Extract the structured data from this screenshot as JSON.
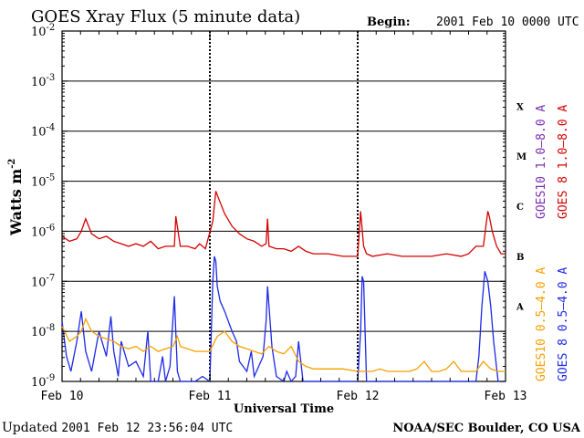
{
  "chart_data": {
    "type": "line",
    "title": "GOES Xray Flux (5 minute data)",
    "begin_label": "Begin:",
    "begin_value": "2001 Feb 10 0000 UTC",
    "xlabel": "Universal Time",
    "ylabel": "Watts m",
    "ylabel_exponent": "-2",
    "xlim": [
      0,
      3
    ],
    "ylim_log10": [
      -9,
      -2
    ],
    "ytick_base": "10",
    "ytick_exponents": [
      "-9",
      "-8",
      "-7",
      "-6",
      "-5",
      "-4",
      "-3",
      "-2"
    ],
    "xtick_labels": [
      "Feb 10",
      "Feb 11",
      "Feb 12",
      "Feb 13"
    ],
    "flare_classes": [
      {
        "label": "A",
        "log10_center": -7.5
      },
      {
        "label": "B",
        "log10_center": -6.5
      },
      {
        "label": "C",
        "log10_center": -5.5
      },
      {
        "label": "M",
        "log10_center": -4.5
      },
      {
        "label": "X",
        "log10_center": -3.5
      }
    ],
    "series": [
      {
        "name": "GOES 8 1.0–8.0 A",
        "color": "#d40000",
        "x": [
          0.0,
          0.05,
          0.1,
          0.13,
          0.16,
          0.2,
          0.25,
          0.3,
          0.35,
          0.4,
          0.45,
          0.5,
          0.55,
          0.6,
          0.65,
          0.7,
          0.76,
          0.77,
          0.8,
          0.85,
          0.9,
          0.93,
          0.97,
          1.02,
          1.04,
          1.06,
          1.1,
          1.15,
          1.2,
          1.25,
          1.3,
          1.35,
          1.38,
          1.39,
          1.4,
          1.45,
          1.5,
          1.55,
          1.6,
          1.65,
          1.7,
          1.8,
          1.9,
          2.0,
          2.02,
          2.04,
          2.06,
          2.1,
          2.2,
          2.3,
          2.4,
          2.5,
          2.6,
          2.7,
          2.75,
          2.8,
          2.85,
          2.88,
          2.89,
          2.91,
          2.94,
          2.97,
          3.0
        ],
        "log10y": [
          -6.1,
          -6.2,
          -6.15,
          -6.0,
          -5.75,
          -6.05,
          -6.15,
          -6.1,
          -6.2,
          -6.25,
          -6.3,
          -6.25,
          -6.3,
          -6.2,
          -6.35,
          -6.3,
          -6.3,
          -5.7,
          -6.3,
          -6.3,
          -6.35,
          -6.25,
          -6.35,
          -5.8,
          -5.2,
          -5.35,
          -5.65,
          -5.9,
          -6.05,
          -6.15,
          -6.2,
          -6.3,
          -6.25,
          -5.75,
          -6.3,
          -6.35,
          -6.35,
          -6.4,
          -6.3,
          -6.4,
          -6.45,
          -6.45,
          -6.5,
          -6.5,
          -5.6,
          -6.3,
          -6.45,
          -6.5,
          -6.45,
          -6.5,
          -6.5,
          -6.5,
          -6.45,
          -6.5,
          -6.45,
          -6.3,
          -6.3,
          -5.6,
          -5.7,
          -6.0,
          -6.3,
          -6.45,
          -6.45
        ]
      },
      {
        "name": "GOES10 1.0–8.0 A",
        "color": "#7a2fb0",
        "x": [],
        "log10y": []
      },
      {
        "name": "GOES 8 0.5–4.0 A",
        "color": "#1c28e6",
        "x": [
          0.0,
          0.03,
          0.06,
          0.1,
          0.13,
          0.16,
          0.2,
          0.25,
          0.3,
          0.33,
          0.35,
          0.38,
          0.4,
          0.45,
          0.5,
          0.55,
          0.58,
          0.6,
          0.62,
          0.65,
          0.68,
          0.7,
          0.73,
          0.76,
          0.78,
          0.8,
          0.85,
          0.9,
          0.95,
          1.0,
          1.02,
          1.03,
          1.04,
          1.05,
          1.07,
          1.1,
          1.15,
          1.18,
          1.2,
          1.25,
          1.28,
          1.3,
          1.33,
          1.36,
          1.38,
          1.39,
          1.4,
          1.42,
          1.45,
          1.5,
          1.52,
          1.55,
          1.58,
          1.6,
          1.63,
          1.65,
          1.7,
          1.75,
          2.0,
          2.02,
          2.03,
          2.04,
          2.05,
          2.06,
          2.1,
          2.8,
          2.82,
          2.84,
          2.86,
          2.88,
          2.9,
          2.92,
          2.95,
          2.98,
          3.0
        ],
        "log10y": [
          -7.8,
          -8.5,
          -8.8,
          -8.2,
          -7.6,
          -8.4,
          -8.8,
          -8.0,
          -8.5,
          -7.7,
          -8.4,
          -8.9,
          -8.2,
          -8.7,
          -8.6,
          -8.9,
          -8.0,
          -9.0,
          -9.0,
          -9.0,
          -8.5,
          -9.0,
          -8.7,
          -7.3,
          -8.8,
          -9.0,
          -9.0,
          -9.0,
          -8.9,
          -9.0,
          -7.0,
          -6.5,
          -6.6,
          -7.1,
          -7.4,
          -7.6,
          -8.0,
          -8.2,
          -8.6,
          -8.8,
          -8.4,
          -8.9,
          -8.7,
          -8.5,
          -7.8,
          -7.1,
          -7.5,
          -8.3,
          -8.9,
          -9.0,
          -8.8,
          -9.0,
          -8.9,
          -8.2,
          -9.0,
          -9.0,
          -9.0,
          -9.0,
          -9.0,
          -8.0,
          -6.9,
          -7.0,
          -8.0,
          -9.0,
          -9.0,
          -9.0,
          -8.5,
          -7.5,
          -6.8,
          -7.0,
          -7.5,
          -8.2,
          -9.0,
          -9.0,
          -9.0
        ]
      },
      {
        "name": "GOES10 0.5–4.0 A",
        "color": "#f5a000",
        "x": [
          0.0,
          0.05,
          0.1,
          0.13,
          0.16,
          0.2,
          0.25,
          0.3,
          0.35,
          0.4,
          0.45,
          0.5,
          0.55,
          0.6,
          0.65,
          0.7,
          0.75,
          0.78,
          0.8,
          0.85,
          0.9,
          0.95,
          1.0,
          1.05,
          1.1,
          1.15,
          1.2,
          1.25,
          1.3,
          1.35,
          1.4,
          1.45,
          1.5,
          1.55,
          1.6,
          1.65,
          1.7,
          1.8,
          1.9,
          2.0,
          2.05,
          2.1,
          2.15,
          2.2,
          2.25,
          2.3,
          2.35,
          2.4,
          2.45,
          2.5,
          2.55,
          2.6,
          2.65,
          2.7,
          2.75,
          2.8,
          2.85,
          2.9,
          2.95,
          3.0
        ],
        "log10y": [
          -7.9,
          -8.2,
          -8.1,
          -8.0,
          -7.75,
          -8.0,
          -8.1,
          -8.15,
          -8.2,
          -8.3,
          -8.35,
          -8.3,
          -8.4,
          -8.3,
          -8.4,
          -8.35,
          -8.3,
          -8.1,
          -8.3,
          -8.35,
          -8.4,
          -8.4,
          -8.4,
          -8.1,
          -8.0,
          -8.2,
          -8.3,
          -8.35,
          -8.4,
          -8.45,
          -8.3,
          -8.4,
          -8.45,
          -8.3,
          -8.6,
          -8.7,
          -8.75,
          -8.75,
          -8.75,
          -8.8,
          -8.8,
          -8.8,
          -8.75,
          -8.8,
          -8.8,
          -8.8,
          -8.8,
          -8.75,
          -8.6,
          -8.8,
          -8.8,
          -8.75,
          -8.6,
          -8.8,
          -8.8,
          -8.8,
          -8.6,
          -8.75,
          -8.8,
          -8.8
        ]
      }
    ],
    "legend_placement": "right"
  },
  "footer": {
    "updated_prefix": "Updated",
    "updated_value": "2001 Feb 12 23:56:04 UTC",
    "source": "NOAA/SEC Boulder, CO USA"
  }
}
